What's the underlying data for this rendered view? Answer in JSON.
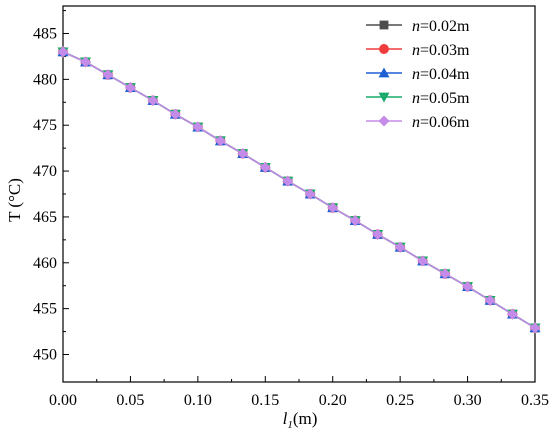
{
  "chart_data": {
    "type": "line",
    "x": [
      0.0,
      0.0167,
      0.0333,
      0.05,
      0.0667,
      0.0833,
      0.1,
      0.1167,
      0.1333,
      0.15,
      0.1667,
      0.1833,
      0.2,
      0.2167,
      0.2333,
      0.25,
      0.2667,
      0.2833,
      0.3,
      0.3167,
      0.3333,
      0.35
    ],
    "series": [
      {
        "name_prefix": "n",
        "name_suffix": "=0.02m",
        "color": "#4d4d4d",
        "marker": "square",
        "values": [
          483.0,
          481.9,
          480.5,
          479.1,
          477.7,
          476.2,
          474.8,
          473.3,
          471.9,
          470.4,
          468.9,
          467.5,
          466.0,
          464.6,
          463.1,
          461.7,
          460.2,
          458.8,
          457.4,
          455.9,
          454.4,
          452.9
        ]
      },
      {
        "name_prefix": "n",
        "name_suffix": "=0.03m",
        "color": "#f03c3c",
        "marker": "circle",
        "values": [
          483.0,
          481.9,
          480.5,
          479.1,
          477.7,
          476.2,
          474.8,
          473.3,
          471.9,
          470.4,
          468.9,
          467.5,
          466.0,
          464.6,
          463.1,
          461.7,
          460.2,
          458.8,
          457.4,
          455.9,
          454.4,
          452.9
        ]
      },
      {
        "name_prefix": "n",
        "name_suffix": "=0.04m",
        "color": "#1f5fd6",
        "marker": "triangle-up",
        "values": [
          483.0,
          481.9,
          480.5,
          479.1,
          477.7,
          476.2,
          474.8,
          473.3,
          471.9,
          470.4,
          468.9,
          467.5,
          466.0,
          464.6,
          463.1,
          461.7,
          460.2,
          458.8,
          457.4,
          455.9,
          454.4,
          452.9
        ]
      },
      {
        "name_prefix": "n",
        "name_suffix": "=0.05m",
        "color": "#1aab6a",
        "marker": "triangle-down",
        "values": [
          483.0,
          481.9,
          480.5,
          479.1,
          477.7,
          476.2,
          474.8,
          473.3,
          471.9,
          470.4,
          468.9,
          467.5,
          466.0,
          464.6,
          463.1,
          461.7,
          460.2,
          458.8,
          457.4,
          455.9,
          454.4,
          452.9
        ]
      },
      {
        "name_prefix": "n",
        "name_suffix": "=0.06m",
        "color": "#c58be8",
        "marker": "diamond",
        "values": [
          483.0,
          481.9,
          480.5,
          479.1,
          477.7,
          476.2,
          474.8,
          473.3,
          471.9,
          470.4,
          468.9,
          467.5,
          466.0,
          464.6,
          463.1,
          461.7,
          460.2,
          458.8,
          457.4,
          455.9,
          454.4,
          452.9
        ]
      }
    ],
    "title": "",
    "xlabel_main": "l",
    "xlabel_sub": "1",
    "xlabel_unit": "(m)",
    "ylabel": "T (°C)",
    "xlim": [
      0.0,
      0.35
    ],
    "ylim": [
      447,
      488
    ],
    "xticks": [
      0.0,
      0.05,
      0.1,
      0.15,
      0.2,
      0.25,
      0.3,
      0.35
    ],
    "xtick_labels": [
      "0.00",
      "0.05",
      "0.10",
      "0.15",
      "0.20",
      "0.25",
      "0.30",
      "0.35"
    ],
    "yticks": [
      450,
      455,
      460,
      465,
      470,
      475,
      480,
      485
    ],
    "ytick_labels": [
      "450",
      "455",
      "460",
      "465",
      "470",
      "475",
      "480",
      "485"
    ],
    "grid": false,
    "legend_position": "top-right"
  }
}
